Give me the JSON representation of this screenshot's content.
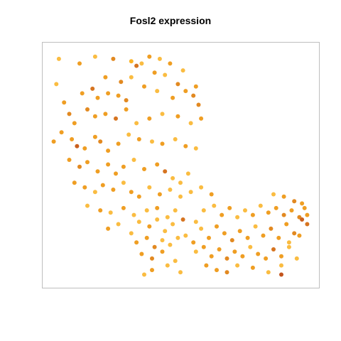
{
  "chart_data": {
    "type": "scatter",
    "title": "Fosl2 expression",
    "xlabel": "",
    "ylabel": "",
    "axes_visible": false,
    "grid": false,
    "legend": "none",
    "color_scale": {
      "low": "#f2f2f2",
      "mid": "#fbb324",
      "high": "#bd4a1d",
      "range": [
        0,
        1
      ]
    },
    "xlim": [
      0,
      100
    ],
    "ylim": [
      0,
      100
    ],
    "points": [
      [
        11,
        94,
        0.6
      ],
      [
        17,
        97,
        0.3
      ],
      [
        24,
        96,
        0.7
      ],
      [
        31,
        95,
        0.4
      ],
      [
        33,
        93,
        0.8
      ],
      [
        38,
        97,
        0.6
      ],
      [
        42,
        96,
        0.3
      ],
      [
        46,
        94,
        0.6
      ],
      [
        35,
        94,
        0.3
      ],
      [
        21,
        88,
        0.6
      ],
      [
        27,
        86,
        0.7
      ],
      [
        31,
        88,
        0.3
      ],
      [
        40,
        90,
        0.6
      ],
      [
        44,
        89,
        0.3
      ],
      [
        49,
        85,
        0.7
      ],
      [
        52,
        82,
        0.6
      ],
      [
        55,
        80,
        0.7
      ],
      [
        51,
        91,
        0.3
      ],
      [
        12,
        81,
        0.6
      ],
      [
        16,
        83,
        0.8
      ],
      [
        18,
        79,
        0.6
      ],
      [
        22,
        81,
        0.6
      ],
      [
        26,
        80,
        0.6
      ],
      [
        29,
        78,
        0.7
      ],
      [
        36,
        84,
        0.6
      ],
      [
        41,
        82,
        0.3
      ],
      [
        47,
        79,
        0.6
      ],
      [
        57,
        76,
        0.7
      ],
      [
        5,
        77,
        0.6
      ],
      [
        7,
        72,
        0.7
      ],
      [
        9,
        68,
        0.6
      ],
      [
        14,
        74,
        0.7
      ],
      [
        17,
        71,
        0.6
      ],
      [
        21,
        72,
        0.6
      ],
      [
        25,
        70,
        0.8
      ],
      [
        29,
        74,
        0.6
      ],
      [
        33,
        68,
        0.3
      ],
      [
        38,
        70,
        0.6
      ],
      [
        43,
        72,
        0.3
      ],
      [
        49,
        71,
        0.6
      ],
      [
        54,
        68,
        0.3
      ],
      [
        58,
        70,
        0.6
      ],
      [
        4,
        64,
        0.6
      ],
      [
        8,
        61,
        0.6
      ],
      [
        10,
        58,
        0.9
      ],
      [
        13,
        57,
        0.6
      ],
      [
        17,
        62,
        0.6
      ],
      [
        19,
        60,
        0.7
      ],
      [
        22,
        56,
        0.6
      ],
      [
        26,
        59,
        0.6
      ],
      [
        30,
        63,
        0.3
      ],
      [
        34,
        61,
        0.6
      ],
      [
        39,
        60,
        0.3
      ],
      [
        43,
        59,
        0.6
      ],
      [
        48,
        61,
        0.3
      ],
      [
        52,
        58,
        0.6
      ],
      [
        56,
        57,
        0.3
      ],
      [
        7,
        52,
        0.6
      ],
      [
        11,
        49,
        0.7
      ],
      [
        14,
        51,
        0.6
      ],
      [
        18,
        47,
        0.6
      ],
      [
        22,
        50,
        0.6
      ],
      [
        25,
        46,
        0.6
      ],
      [
        28,
        49,
        0.6
      ],
      [
        32,
        52,
        0.3
      ],
      [
        36,
        48,
        0.6
      ],
      [
        41,
        50,
        0.6
      ],
      [
        44,
        47,
        0.8
      ],
      [
        47,
        44,
        0.3
      ],
      [
        53,
        46,
        0.3
      ],
      [
        9,
        42,
        0.6
      ],
      [
        13,
        40,
        0.6
      ],
      [
        17,
        38,
        0.3
      ],
      [
        20,
        41,
        0.6
      ],
      [
        24,
        39,
        0.6
      ],
      [
        28,
        42,
        0.3
      ],
      [
        31,
        38,
        0.6
      ],
      [
        34,
        36,
        0.6
      ],
      [
        38,
        40,
        0.3
      ],
      [
        42,
        37,
        0.6
      ],
      [
        46,
        39,
        0.3
      ],
      [
        50,
        36,
        0.3
      ],
      [
        14,
        32,
        0.3
      ],
      [
        19,
        30,
        0.6
      ],
      [
        23,
        29,
        0.3
      ],
      [
        28,
        31,
        0.6
      ],
      [
        32,
        28,
        0.3
      ],
      [
        37,
        30,
        0.3
      ],
      [
        41,
        31,
        0.6
      ],
      [
        45,
        27,
        0.3
      ],
      [
        48,
        30,
        0.3
      ],
      [
        22,
        22,
        0.6
      ],
      [
        26,
        24,
        0.3
      ],
      [
        31,
        20,
        0.3
      ],
      [
        34,
        25,
        0.3
      ],
      [
        38,
        23,
        0.6
      ],
      [
        41,
        26,
        0.3
      ],
      [
        44,
        21,
        0.3
      ],
      [
        47,
        24,
        0.3
      ],
      [
        51,
        26,
        0.8
      ],
      [
        33,
        16,
        0.6
      ],
      [
        37,
        18,
        0.6
      ],
      [
        40,
        14,
        0.7
      ],
      [
        43,
        17,
        0.3
      ],
      [
        46,
        15,
        0.3
      ],
      [
        49,
        18,
        0.3
      ],
      [
        35,
        11,
        0.6
      ],
      [
        39,
        9,
        0.7
      ],
      [
        43,
        12,
        0.6
      ],
      [
        48,
        8,
        0.3
      ],
      [
        39,
        4,
        0.6
      ],
      [
        45,
        6,
        0.3
      ],
      [
        50,
        3,
        0.3
      ],
      [
        52,
        19,
        0.3
      ],
      [
        55,
        16,
        0.6
      ],
      [
        58,
        22,
        0.3
      ],
      [
        61,
        18,
        0.6
      ],
      [
        64,
        23,
        0.6
      ],
      [
        67,
        20,
        0.6
      ],
      [
        70,
        17,
        0.7
      ],
      [
        73,
        21,
        0.6
      ],
      [
        76,
        18,
        0.6
      ],
      [
        79,
        23,
        0.3
      ],
      [
        82,
        19,
        0.6
      ],
      [
        85,
        22,
        0.7
      ],
      [
        88,
        18,
        0.6
      ],
      [
        91,
        24,
        0.6
      ],
      [
        94,
        20,
        0.7
      ],
      [
        97,
        26,
        0.9
      ],
      [
        56,
        12,
        0.3
      ],
      [
        59,
        14,
        0.6
      ],
      [
        62,
        10,
        0.6
      ],
      [
        65,
        13,
        0.6
      ],
      [
        68,
        9,
        0.7
      ],
      [
        71,
        12,
        0.6
      ],
      [
        74,
        10,
        0.6
      ],
      [
        77,
        14,
        0.3
      ],
      [
        80,
        11,
        0.6
      ],
      [
        83,
        9,
        0.6
      ],
      [
        86,
        13,
        0.8
      ],
      [
        89,
        10,
        0.6
      ],
      [
        92,
        14,
        0.3
      ],
      [
        60,
        6,
        0.6
      ],
      [
        64,
        4,
        0.6
      ],
      [
        68,
        3,
        0.7
      ],
      [
        72,
        6,
        0.3
      ],
      [
        78,
        5,
        0.6
      ],
      [
        84,
        3,
        0.3
      ],
      [
        89,
        6,
        0.3
      ],
      [
        95,
        9,
        0.3
      ],
      [
        89,
        2,
        0.95
      ],
      [
        59,
        30,
        0.3
      ],
      [
        63,
        32,
        0.3
      ],
      [
        66,
        28,
        0.6
      ],
      [
        69,
        31,
        0.6
      ],
      [
        72,
        27,
        0.3
      ],
      [
        75,
        30,
        0.3
      ],
      [
        78,
        28,
        0.6
      ],
      [
        81,
        32,
        0.3
      ],
      [
        84,
        29,
        0.6
      ],
      [
        87,
        31,
        0.6
      ],
      [
        90,
        28,
        0.7
      ],
      [
        93,
        30,
        0.6
      ],
      [
        96,
        27,
        0.7
      ],
      [
        98,
        31,
        0.6
      ],
      [
        54,
        38,
        0.3
      ],
      [
        58,
        40,
        0.3
      ],
      [
        62,
        37,
        0.6
      ],
      [
        86,
        37,
        0.3
      ],
      [
        90,
        36,
        0.6
      ],
      [
        94,
        34,
        0.7
      ],
      [
        97,
        33,
        0.6
      ],
      [
        99,
        28,
        0.6
      ],
      [
        99,
        24,
        0.8
      ],
      [
        96,
        19,
        0.6
      ],
      [
        92,
        16,
        0.3
      ],
      [
        3,
        96,
        0.3
      ],
      [
        2,
        85,
        0.3
      ],
      [
        1,
        60,
        0.6
      ],
      [
        56,
        84,
        0.6
      ],
      [
        50,
        42,
        0.3
      ],
      [
        56,
        25,
        0.3
      ],
      [
        36,
        2,
        0.3
      ]
    ]
  }
}
